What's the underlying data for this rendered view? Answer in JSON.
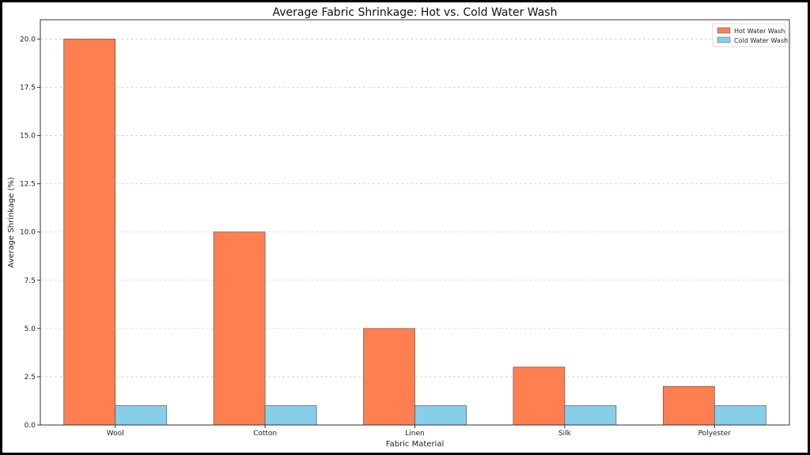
{
  "chart_data": {
    "type": "bar",
    "title": "Average Fabric Shrinkage: Hot vs. Cold Water Wash",
    "xlabel": "Fabric Material",
    "ylabel": "Average Shrinkage (%)",
    "categories": [
      "Wool",
      "Cotton",
      "Linen",
      "Silk",
      "Polyester"
    ],
    "series": [
      {
        "name": "Hot Water Wash",
        "values": [
          20.0,
          10.0,
          5.0,
          3.0,
          2.0
        ],
        "color": "#FF7F50"
      },
      {
        "name": "Cold Water Wash",
        "values": [
          1.0,
          1.0,
          1.0,
          1.0,
          1.0
        ],
        "color": "#87CEEB"
      }
    ],
    "ylim": [
      0,
      21
    ],
    "yticks": [
      "0.0",
      "2.5",
      "5.0",
      "7.5",
      "10.0",
      "12.5",
      "15.0",
      "17.5",
      "20.0"
    ],
    "grid": "horizontal dashed",
    "legend_position": "top-right"
  }
}
